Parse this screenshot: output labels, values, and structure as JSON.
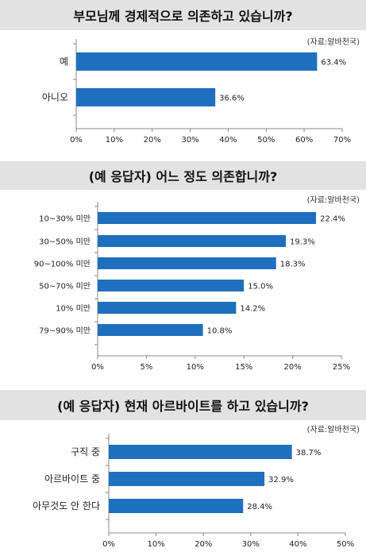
{
  "charts": [
    {
      "title": "부모님께 경제적으로 의존하고 있습니까?",
      "source": "(자료:알바천국)",
      "chart_data": {
        "type": "bar",
        "orientation": "horizontal",
        "categories": [
          "예",
          "아니오"
        ],
        "values": [
          63.4,
          36.6
        ],
        "value_labels": [
          "63.4%",
          "36.6%"
        ],
        "xlim": [
          0,
          70
        ],
        "ticks": [
          0,
          10,
          20,
          30,
          40,
          50,
          60,
          70
        ],
        "tick_labels": [
          "0%",
          "10%",
          "20%",
          "30%",
          "40%",
          "50%",
          "60%",
          "70%"
        ],
        "bar_color": "#1f6fbf",
        "grid": false
      }
    },
    {
      "title": "(예 응답자) 어느 정도 의존합니까?",
      "source": "(자료:알바천국)",
      "chart_data": {
        "type": "bar",
        "orientation": "horizontal",
        "categories": [
          "10~30% 미만",
          "30~50% 미만",
          "90~100% 미만",
          "50~70% 미만",
          "10% 미만",
          "79~90% 미만"
        ],
        "values": [
          22.4,
          19.3,
          18.3,
          15.0,
          14.2,
          10.8
        ],
        "value_labels": [
          "22.4%",
          "19.3%",
          "18.3%",
          "15.0%",
          "14.2%",
          "10.8%"
        ],
        "xlim": [
          0,
          25
        ],
        "ticks": [
          0,
          5,
          10,
          15,
          20,
          25
        ],
        "tick_labels": [
          "0%",
          "5%",
          "10%",
          "15%",
          "20%",
          "25%"
        ],
        "bar_color": "#1f6fbf",
        "grid": false
      }
    },
    {
      "title": "(예 응답자) 현재 아르바이트를 하고 있습니까?",
      "source": "(자료:알바천국)",
      "chart_data": {
        "type": "bar",
        "orientation": "horizontal",
        "categories": [
          "구직 중",
          "아르바이트 중",
          "아무것도 안 한다"
        ],
        "values": [
          38.7,
          32.9,
          28.4
        ],
        "value_labels": [
          "38.7%",
          "32.9%",
          "28.4%"
        ],
        "xlim": [
          0,
          50
        ],
        "ticks": [
          0,
          10,
          20,
          30,
          40,
          50
        ],
        "tick_labels": [
          "0%",
          "10%",
          "20%",
          "30%",
          "40%",
          "50%"
        ],
        "bar_color": "#1f6fbf",
        "grid": false
      }
    }
  ]
}
